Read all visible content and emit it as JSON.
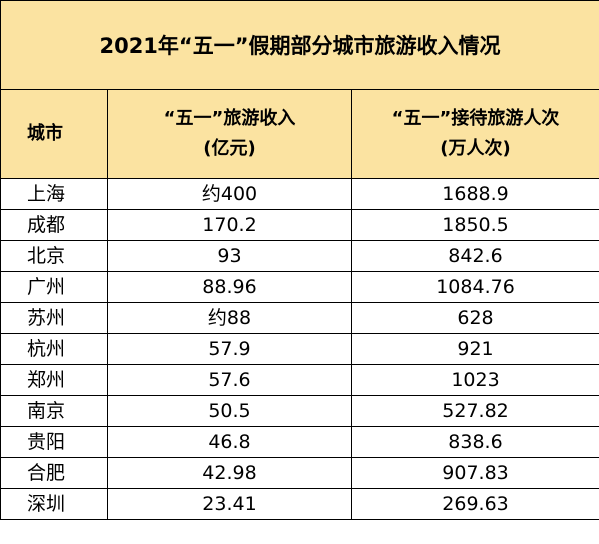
{
  "table": {
    "title": "2021年“五一”假期部分城市旅游收入情况",
    "headers": {
      "city": "城市",
      "income_line1": "“五一”旅游收入",
      "income_line2": "(亿元)",
      "visitors_line1": "“五一”接待旅游人次",
      "visitors_line2": "(万人次)"
    },
    "rows": [
      {
        "city": "上海",
        "income": "约400",
        "visitors": "1688.9"
      },
      {
        "city": "成都",
        "income": "170.2",
        "visitors": "1850.5"
      },
      {
        "city": "北京",
        "income": "93",
        "visitors": "842.6"
      },
      {
        "city": "广州",
        "income": "88.96",
        "visitors": "1084.76"
      },
      {
        "city": "苏州",
        "income": "约88",
        "visitors": "628"
      },
      {
        "city": "杭州",
        "income": "57.9",
        "visitors": "921"
      },
      {
        "city": "郑州",
        "income": "57.6",
        "visitors": "1023"
      },
      {
        "city": "南京",
        "income": "50.5",
        "visitors": "527.82"
      },
      {
        "city": "贵阳",
        "income": "46.8",
        "visitors": "838.6"
      },
      {
        "city": "合肥",
        "income": "42.98",
        "visitors": "907.83"
      },
      {
        "city": "深圳",
        "income": "23.41",
        "visitors": "269.63"
      }
    ]
  },
  "colors": {
    "header_background": "#fbe3a1",
    "border": "#000000",
    "text": "#000000"
  }
}
